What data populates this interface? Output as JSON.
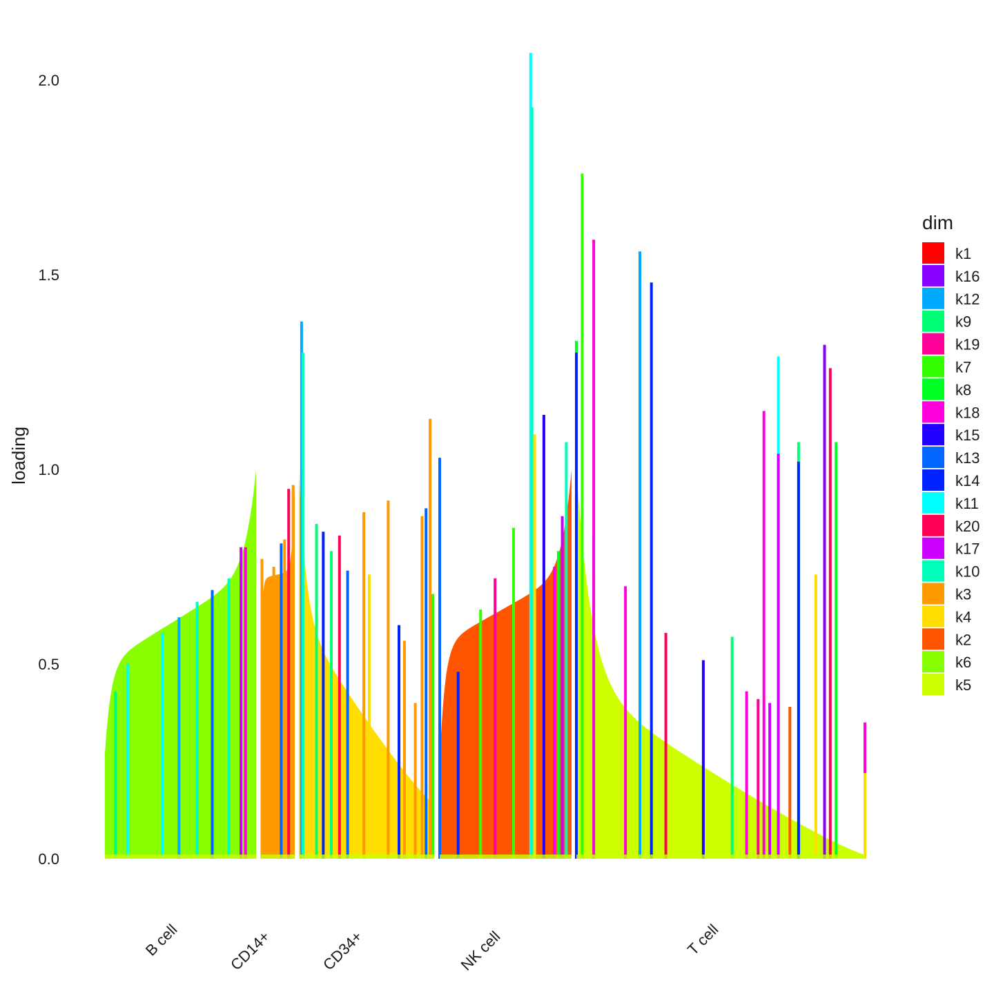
{
  "chart_data": {
    "type": "bar",
    "subtype": "structure-plot (stacked bars per cell, grouped by cell type)",
    "title": "",
    "xlabel": "",
    "ylabel": "loading",
    "ylim": [
      0,
      2.1
    ],
    "y_ticks": [
      {
        "value": 0.0,
        "label": "0.0"
      },
      {
        "value": 0.5,
        "label": "0.5"
      },
      {
        "value": 1.0,
        "label": "1.0"
      },
      {
        "value": 1.5,
        "label": "1.5"
      },
      {
        "value": 2.0,
        "label": "2.0"
      }
    ],
    "grid": false,
    "legend": {
      "title": "dim",
      "position": "right",
      "entries": [
        {
          "name": "k1",
          "color": "#FF0000"
        },
        {
          "name": "k16",
          "color": "#8800FF"
        },
        {
          "name": "k12",
          "color": "#00AAFF"
        },
        {
          "name": "k9",
          "color": "#00FF77"
        },
        {
          "name": "k19",
          "color": "#FF0099"
        },
        {
          "name": "k7",
          "color": "#33FF00"
        },
        {
          "name": "k8",
          "color": "#00FF22"
        },
        {
          "name": "k18",
          "color": "#FF00DD"
        },
        {
          "name": "k15",
          "color": "#2200FF"
        },
        {
          "name": "k13",
          "color": "#0066FF"
        },
        {
          "name": "k14",
          "color": "#0022FF"
        },
        {
          "name": "k11",
          "color": "#00FFFF"
        },
        {
          "name": "k20",
          "color": "#FF0055"
        },
        {
          "name": "k17",
          "color": "#CC00FF"
        },
        {
          "name": "k10",
          "color": "#00FFBB"
        },
        {
          "name": "k3",
          "color": "#FF9900"
        },
        {
          "name": "k4",
          "color": "#FFDD00"
        },
        {
          "name": "k2",
          "color": "#FF5500"
        },
        {
          "name": "k6",
          "color": "#88FF00"
        },
        {
          "name": "k5",
          "color": "#CCFF00"
        }
      ]
    },
    "groups": [
      {
        "name": "B cell",
        "dominant": "k6",
        "profile": {
          "type": "rising",
          "start": 0.27,
          "knee": 0.5,
          "end": 1.0
        },
        "spikes": [
          {
            "at": 0.07,
            "value": 0.43,
            "dim": "k9"
          },
          {
            "at": 0.15,
            "value": 0.5,
            "dim": "k11"
          },
          {
            "at": 0.38,
            "value": 0.58,
            "dim": "k11"
          },
          {
            "at": 0.49,
            "value": 0.62,
            "dim": "k12"
          },
          {
            "at": 0.61,
            "value": 0.66,
            "dim": "k10"
          },
          {
            "at": 0.71,
            "value": 0.69,
            "dim": "k13"
          },
          {
            "at": 0.82,
            "value": 0.72,
            "dim": "k10"
          },
          {
            "at": 0.9,
            "value": 0.8,
            "dim": "k17"
          },
          {
            "at": 0.93,
            "value": 0.8,
            "dim": "k18"
          }
        ]
      },
      {
        "name": "CD14+",
        "dominant": "k3",
        "profile": {
          "type": "rising",
          "start": 0.5,
          "knee": 0.72,
          "end": 0.96
        },
        "spikes": [
          {
            "at": 0.03,
            "value": 0.77,
            "dim": "k3"
          },
          {
            "at": 0.38,
            "value": 0.75,
            "dim": "k3"
          },
          {
            "at": 0.6,
            "value": 0.81,
            "dim": "k13"
          },
          {
            "at": 0.7,
            "value": 0.82,
            "dim": "k3"
          },
          {
            "at": 0.82,
            "value": 0.95,
            "dim": "k20"
          },
          {
            "at": 0.95,
            "value": 0.96,
            "dim": "k3"
          }
        ]
      },
      {
        "name": "CD34+",
        "dominant": "k4",
        "profile": {
          "type": "falling",
          "start": 1.0,
          "knee": 0.62,
          "end": 0.14
        },
        "spikes": [
          {
            "at": 0.02,
            "value": 1.38,
            "dim": "k12"
          },
          {
            "at": 0.03,
            "value": 1.3,
            "dim": "k10"
          },
          {
            "at": 0.13,
            "value": 0.86,
            "dim": "k9"
          },
          {
            "at": 0.18,
            "value": 0.84,
            "dim": "k14"
          },
          {
            "at": 0.24,
            "value": 0.79,
            "dim": "k9"
          },
          {
            "at": 0.3,
            "value": 0.83,
            "dim": "k20"
          },
          {
            "at": 0.36,
            "value": 0.74,
            "dim": "k13"
          },
          {
            "at": 0.48,
            "value": 0.89,
            "dim": "k3"
          },
          {
            "at": 0.52,
            "value": 0.73,
            "dim": "k4"
          },
          {
            "at": 0.66,
            "value": 0.92,
            "dim": "k3"
          },
          {
            "at": 0.74,
            "value": 0.6,
            "dim": "k14"
          },
          {
            "at": 0.78,
            "value": 0.56,
            "dim": "k3"
          },
          {
            "at": 0.86,
            "value": 0.4,
            "dim": "k3"
          },
          {
            "at": 0.91,
            "value": 0.88,
            "dim": "k3"
          },
          {
            "at": 0.94,
            "value": 0.9,
            "dim": "k13"
          },
          {
            "at": 0.97,
            "value": 1.13,
            "dim": "k3"
          },
          {
            "at": 0.99,
            "value": 0.68,
            "dim": "k7"
          }
        ]
      },
      {
        "name": "NK cell",
        "dominant": "k2",
        "profile": {
          "type": "rising",
          "start": 0.25,
          "knee": 0.55,
          "end": 1.0
        },
        "spikes": [
          {
            "at": 0.0,
            "value": 1.03,
            "dim": "k13"
          },
          {
            "at": 0.14,
            "value": 0.48,
            "dim": "k14"
          },
          {
            "at": 0.31,
            "value": 0.64,
            "dim": "k7"
          },
          {
            "at": 0.42,
            "value": 0.72,
            "dim": "k19"
          },
          {
            "at": 0.56,
            "value": 0.85,
            "dim": "k7"
          },
          {
            "at": 0.69,
            "value": 2.07,
            "dim": "k11"
          },
          {
            "at": 0.7,
            "value": 1.93,
            "dim": "k10"
          },
          {
            "at": 0.72,
            "value": 1.09,
            "dim": "k4"
          },
          {
            "at": 0.79,
            "value": 1.14,
            "dim": "k15"
          },
          {
            "at": 0.87,
            "value": 0.75,
            "dim": "k18"
          },
          {
            "at": 0.9,
            "value": 0.79,
            "dim": "k8"
          },
          {
            "at": 0.93,
            "value": 0.88,
            "dim": "k17"
          },
          {
            "at": 0.96,
            "value": 1.07,
            "dim": "k10"
          }
        ]
      },
      {
        "name": "T cell",
        "dominant": "k5",
        "profile": {
          "type": "falling",
          "start": 1.0,
          "knee": 0.45,
          "end": 0.01
        },
        "spikes": [
          {
            "at": 0.0,
            "value": 1.33,
            "dim": "k8"
          },
          {
            "at": 0.0,
            "value": 1.3,
            "dim": "k14"
          },
          {
            "at": 0.02,
            "value": 1.76,
            "dim": "k7"
          },
          {
            "at": 0.06,
            "value": 0.83,
            "dim": "k11"
          },
          {
            "at": 0.06,
            "value": 1.59,
            "dim": "k18"
          },
          {
            "at": 0.17,
            "value": 0.7,
            "dim": "k18"
          },
          {
            "at": 0.22,
            "value": 1.56,
            "dim": "k12"
          },
          {
            "at": 0.26,
            "value": 1.48,
            "dim": "k14"
          },
          {
            "at": 0.31,
            "value": 0.58,
            "dim": "k20"
          },
          {
            "at": 0.44,
            "value": 0.51,
            "dim": "k15"
          },
          {
            "at": 0.54,
            "value": 0.57,
            "dim": "k9"
          },
          {
            "at": 0.59,
            "value": 0.43,
            "dim": "k18"
          },
          {
            "at": 0.63,
            "value": 0.41,
            "dim": "k19"
          },
          {
            "at": 0.65,
            "value": 1.15,
            "dim": "k18"
          },
          {
            "at": 0.67,
            "value": 0.4,
            "dim": "k17"
          },
          {
            "at": 0.7,
            "value": 1.29,
            "dim": "k11"
          },
          {
            "at": 0.7,
            "value": 1.04,
            "dim": "k17"
          },
          {
            "at": 0.74,
            "value": 0.39,
            "dim": "k2"
          },
          {
            "at": 0.77,
            "value": 1.07,
            "dim": "k9"
          },
          {
            "at": 0.77,
            "value": 1.02,
            "dim": "k14"
          },
          {
            "at": 0.83,
            "value": 0.73,
            "dim": "k4"
          },
          {
            "at": 0.86,
            "value": 1.32,
            "dim": "k16"
          },
          {
            "at": 0.88,
            "value": 1.26,
            "dim": "k20"
          },
          {
            "at": 0.9,
            "value": 1.07,
            "dim": "k8"
          },
          {
            "at": 1.0,
            "value": 0.35,
            "dim": "k18"
          },
          {
            "at": 1.0,
            "value": 0.22,
            "dim": "k4"
          }
        ]
      }
    ]
  }
}
